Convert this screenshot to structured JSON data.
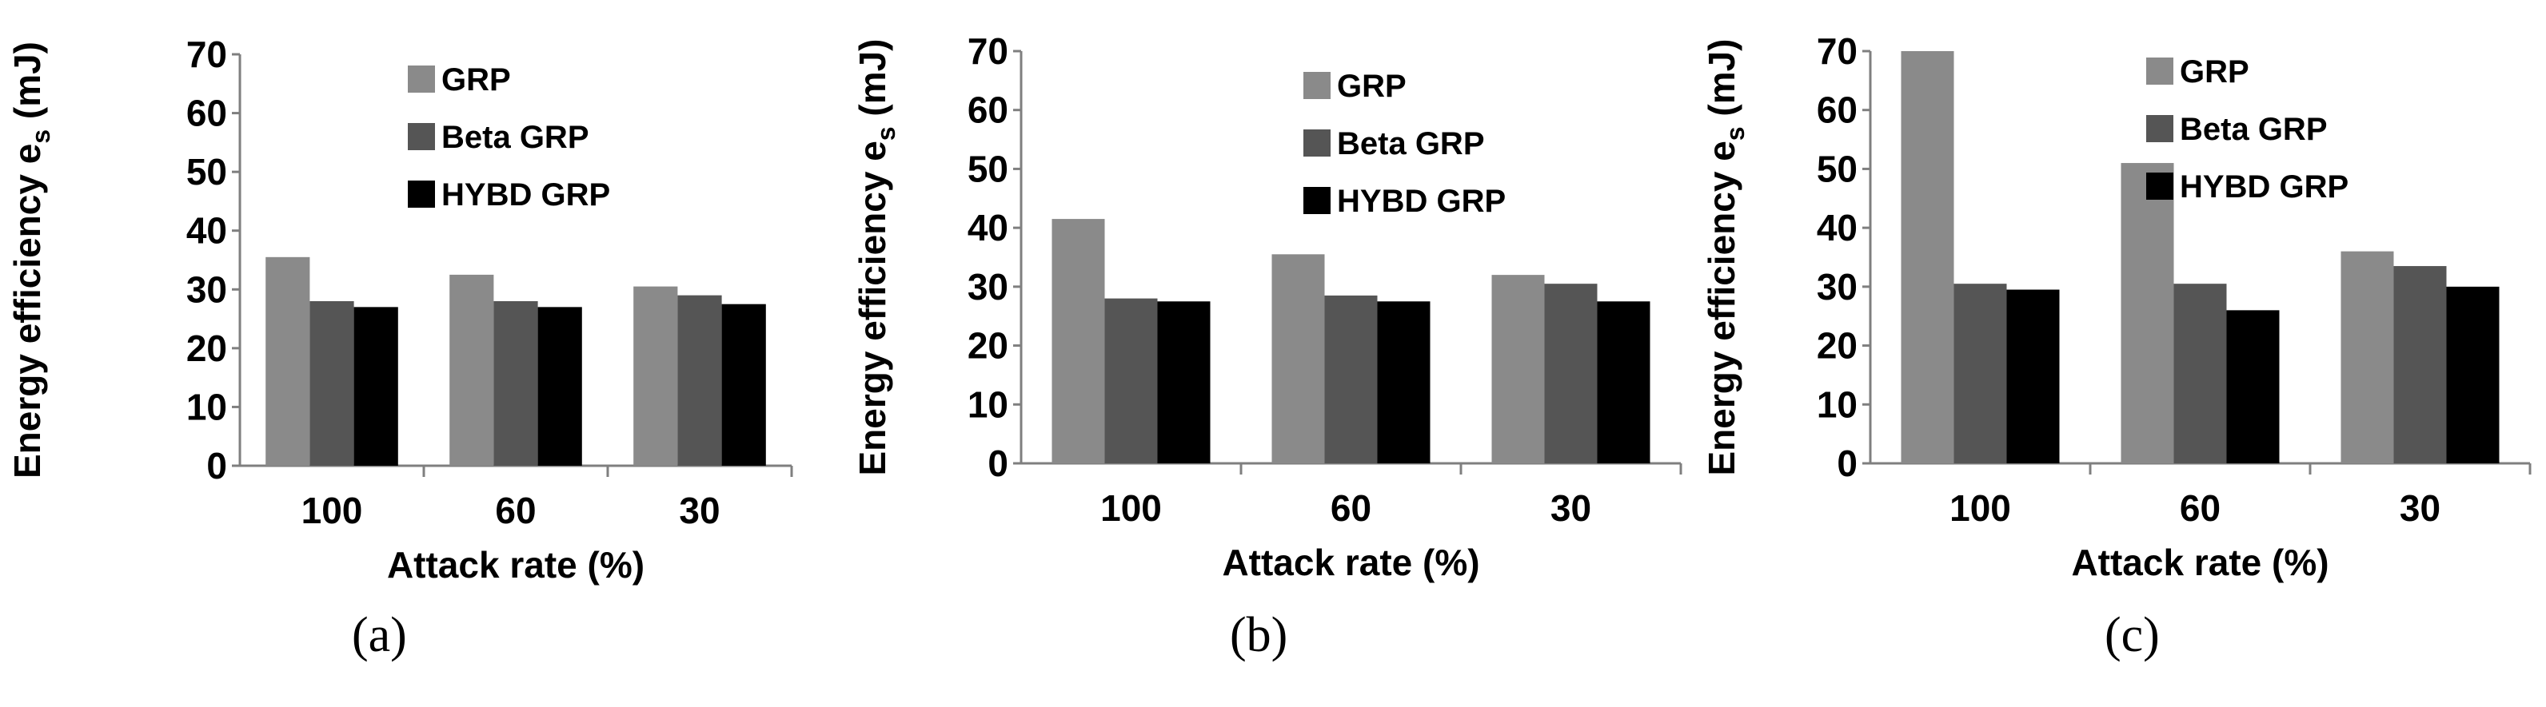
{
  "chart_data": [
    {
      "type": "bar",
      "panel_label": "(a)",
      "ylabel": "Energy efficiency e",
      "ylabel_sub": "s",
      "ylabel_unit": " (mJ)",
      "xlabel": "Attack rate (%)",
      "ylim": [
        0,
        70
      ],
      "yticks": [
        0,
        10,
        20,
        30,
        40,
        50,
        60,
        70
      ],
      "categories": [
        "100",
        "60",
        "30"
      ],
      "series": [
        {
          "name": "GRP",
          "color": "#8a8a8a",
          "values": [
            35.5,
            32.5,
            30.5
          ]
        },
        {
          "name": "Beta GRP",
          "color": "#555555",
          "values": [
            28,
            28,
            29
          ]
        },
        {
          "name": "HYBD GRP",
          "color": "#000000",
          "values": [
            27,
            27,
            27.5
          ]
        }
      ],
      "legend_position": "top-center"
    },
    {
      "type": "bar",
      "panel_label": "(b)",
      "ylabel": "Energy efficiency e",
      "ylabel_sub": "s",
      "ylabel_unit": " (mJ)",
      "xlabel": "Attack rate (%)",
      "ylim": [
        0,
        70
      ],
      "yticks": [
        0,
        10,
        20,
        30,
        40,
        50,
        60,
        70
      ],
      "categories": [
        "100",
        "60",
        "30"
      ],
      "series": [
        {
          "name": "GRP",
          "color": "#8a8a8a",
          "values": [
            41.5,
            35.5,
            32
          ]
        },
        {
          "name": "Beta GRP",
          "color": "#555555",
          "values": [
            28,
            28.5,
            30.5
          ]
        },
        {
          "name": "HYBD GRP",
          "color": "#000000",
          "values": [
            27.5,
            27.5,
            27.5
          ]
        }
      ],
      "legend_position": "top-right"
    },
    {
      "type": "bar",
      "panel_label": "(c)",
      "ylabel": "Energy efficiency e",
      "ylabel_sub": "s",
      "ylabel_unit": " (mJ)",
      "xlabel": "Attack rate (%)",
      "ylim": [
        0,
        70
      ],
      "yticks": [
        0,
        10,
        20,
        30,
        40,
        50,
        60,
        70
      ],
      "categories": [
        "100",
        "60",
        "30"
      ],
      "series": [
        {
          "name": "GRP",
          "color": "#8a8a8a",
          "values": [
            70,
            51,
            36
          ]
        },
        {
          "name": "Beta GRP",
          "color": "#555555",
          "values": [
            30.5,
            30.5,
            33.5
          ]
        },
        {
          "name": "HYBD GRP",
          "color": "#000000",
          "values": [
            29.5,
            26,
            30
          ]
        }
      ],
      "legend_position": "top-right"
    }
  ]
}
